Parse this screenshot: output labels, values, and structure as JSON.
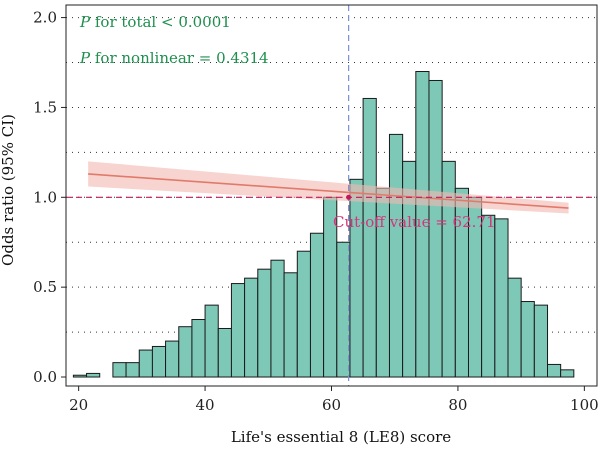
{
  "chart_data": {
    "type": "bar",
    "xlabel": "Life's essential 8 (LE8) score",
    "ylabel": "Odds ratio (95% CI)",
    "xlim": [
      18,
      102
    ],
    "ylim": [
      -0.05,
      2.07
    ],
    "x_ticks": [
      "20",
      "40",
      "60",
      "80",
      "100"
    ],
    "x_tick_values": [
      20,
      40,
      60,
      80,
      100
    ],
    "y_ticks": [
      "0.0",
      "0.5",
      "1.0",
      "1.5",
      "2.0"
    ],
    "y_tick_values": [
      0.0,
      0.5,
      1.0,
      1.5,
      2.0
    ],
    "grid": "dotted horizontal",
    "histogram": {
      "bin_width": 2.084,
      "bin_starts": [
        19.17,
        21.25,
        23.33,
        25.42,
        27.5,
        29.59,
        31.67,
        33.75,
        35.84,
        37.92,
        40.0,
        42.09,
        44.17,
        46.25,
        48.34,
        50.42,
        52.5,
        54.59,
        56.67,
        58.75,
        60.84,
        62.92,
        65.0,
        67.09,
        69.17,
        71.25,
        73.34,
        75.42,
        77.5,
        79.59,
        81.67,
        83.75,
        85.84,
        87.92,
        90.0,
        92.09,
        94.17,
        96.25
      ],
      "values": [
        0.01,
        0.02,
        0.0,
        0.08,
        0.08,
        0.15,
        0.17,
        0.2,
        0.28,
        0.32,
        0.4,
        0.27,
        0.52,
        0.55,
        0.6,
        0.65,
        0.58,
        0.7,
        0.8,
        1.0,
        0.75,
        1.1,
        1.55,
        1.05,
        1.35,
        1.2,
        1.7,
        1.65,
        1.2,
        1.05,
        1.0,
        0.9,
        0.88,
        0.55,
        0.42,
        0.4,
        0.07,
        0.04
      ]
    },
    "series": [
      {
        "kind": "spline",
        "x": [
          21.5,
          97.5
        ],
        "y": [
          1.13,
          0.94
        ],
        "ci_lower": [
          1.06,
          0.91
        ],
        "ci_upper": [
          1.2,
          0.97
        ]
      }
    ],
    "reference_lines": {
      "y": 1.0,
      "x": 62.71
    },
    "annotations": {
      "p_total_italic": "P",
      "p_total_rest": " for total < 0.0001",
      "p_nonlinear_italic": "P",
      "p_nonlinear_rest": " for nonlinear = 0.4314",
      "cutoff": "Cut-off value = 62.71"
    },
    "colors": {
      "bar_fill": "#7ec8b8",
      "bar_stroke": "#1a1a1a",
      "line": "#e07b6b",
      "ci_band": "#f4b8b0",
      "ref_h": "#c2185b",
      "ref_v": "#7b8fd6",
      "annotation_green": "#1f8f4e",
      "annotation_pink": "#d6357a"
    }
  }
}
